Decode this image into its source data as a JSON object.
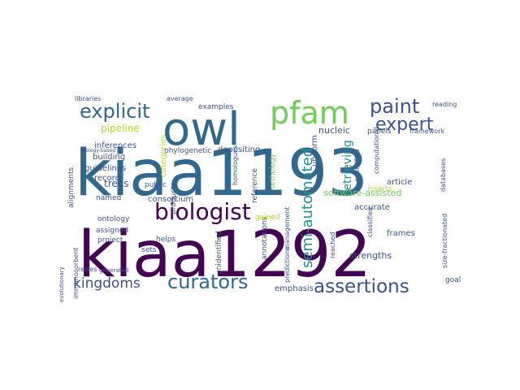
{
  "words": [
    {
      "text": "kiaa1193",
      "color": "#31688e"
    },
    {
      "text": "kiaa1292",
      "color": "#440154"
    },
    {
      "text": "owl",
      "color": "#31688e"
    },
    {
      "text": "pfam",
      "color": "#6ece58"
    },
    {
      "text": "paint",
      "color": "#3b528b"
    },
    {
      "text": "expert",
      "color": "#3b528b"
    },
    {
      "text": "explicit",
      "color": "#31688e"
    },
    {
      "text": "biologist",
      "color": "#440154"
    },
    {
      "text": "curators",
      "color": "#31688e"
    },
    {
      "text": "assertions",
      "color": "#3b528b"
    },
    {
      "text": "kingdoms",
      "color": "#3b528b"
    },
    {
      "text": "semi-automated",
      "color": "#21918c"
    },
    {
      "text": "software-assisted",
      "color": "#6ece58"
    },
    {
      "text": "pipeline",
      "color": "#b5de2b"
    },
    {
      "text": "retrieving",
      "color": "#21918c"
    },
    {
      "text": "nucleic",
      "color": "#3b528b"
    },
    {
      "text": "uniform",
      "color": "#3b528b"
    },
    {
      "text": "accurate",
      "color": "#3b528b"
    },
    {
      "text": "strengths",
      "color": "#3b528b"
    },
    {
      "text": "consortium",
      "color": "#3b528b"
    },
    {
      "text": "trees",
      "color": "#3b528b"
    },
    {
      "text": "building",
      "color": "#3b528b"
    },
    {
      "text": "inferences",
      "color": "#3b528b"
    },
    {
      "text": "guidelines",
      "color": "#3b528b"
    },
    {
      "text": "record",
      "color": "#3b528b"
    },
    {
      "text": "depositing",
      "color": "#3b528b"
    },
    {
      "text": "phylogenetic",
      "color": "#3b528b"
    },
    {
      "text": "examples",
      "color": "#3b528b"
    },
    {
      "text": "average",
      "color": "#3b528b"
    },
    {
      "text": "libraries",
      "color": "#3b528b"
    },
    {
      "text": "article",
      "color": "#3b528b"
    },
    {
      "text": "frames",
      "color": "#3b528b"
    },
    {
      "text": "emphasis",
      "color": "#3b528b"
    },
    {
      "text": "assigned",
      "color": "#3b528b"
    },
    {
      "text": "project",
      "color": "#3b528b"
    },
    {
      "text": "helps",
      "color": "#3b528b"
    },
    {
      "text": "sets",
      "color": "#3b528b"
    },
    {
      "text": "ontology",
      "color": "#3b528b"
    },
    {
      "text": "named",
      "color": "#3b528b"
    },
    {
      "text": "alignments",
      "color": "#3b528b"
    },
    {
      "text": "public",
      "color": "#3b528b"
    },
    {
      "text": "annotations",
      "color": "#3b528b"
    },
    {
      "text": "reference",
      "color": "#3b528b"
    },
    {
      "text": "predictions",
      "color": "#3b528b"
    },
    {
      "text": "management",
      "color": "#3b528b"
    },
    {
      "text": "orthology",
      "color": "#6ece58"
    },
    {
      "text": "categories",
      "color": "#b5de2b"
    },
    {
      "text": "inserts",
      "color": "#b5de2b"
    },
    {
      "text": "panels",
      "color": "#3b528b"
    },
    {
      "text": "framework",
      "color": "#3b528b"
    },
    {
      "text": "reading",
      "color": "#3b528b"
    },
    {
      "text": "databases",
      "color": "#3b528b"
    },
    {
      "text": "goal",
      "color": "#3b528b"
    },
    {
      "text": "unidentified",
      "color": "#3b528b"
    },
    {
      "text": "quantified",
      "color": "#3b528b"
    },
    {
      "text": "classified",
      "color": "#3b528b"
    },
    {
      "text": "size-fractionated",
      "color": "#3b528b"
    },
    {
      "text": "relses",
      "color": "#3b528b"
    },
    {
      "text": "immunosorbent",
      "color": "#3b528b"
    },
    {
      "text": "products",
      "color": "#3b528b"
    },
    {
      "text": "homologues",
      "color": "#3b528b"
    },
    {
      "text": "gained",
      "color": "#b5de2b"
    },
    {
      "text": "reached",
      "color": "#3b528b"
    },
    {
      "text": "evolutionary",
      "color": "#3b528b"
    },
    {
      "text": "generated",
      "color": "#3b528b"
    },
    {
      "text": "computational",
      "color": "#3b528b"
    },
    {
      "text": "biology-based",
      "color": "#3b528b"
    }
  ]
}
